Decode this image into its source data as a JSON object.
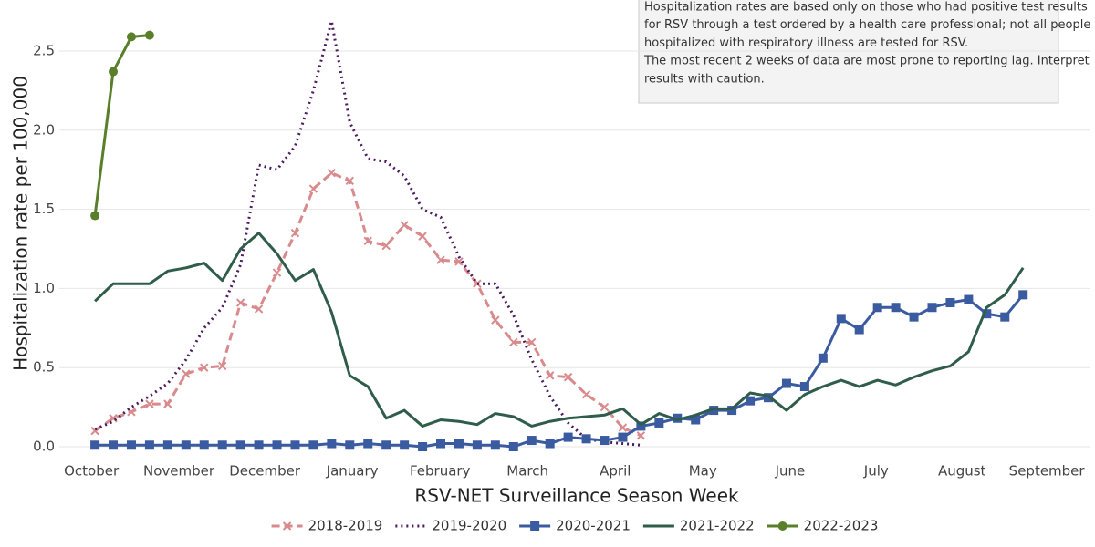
{
  "chart_data": {
    "type": "line",
    "x_label": "RSV-NET Surveillance Season Week",
    "y_label": "Hospitalization rate per 100,000",
    "annotation": [
      "Hospitalization rates are based only on those who had positive test results",
      "for RSV through a test ordered by a health care professional; not all people",
      "hospitalized with respiratory illness are tested for RSV.",
      "The most recent 2 weeks of data are most prone to reporting lag. Interpret",
      "results with caution."
    ],
    "x": [
      0,
      1,
      2,
      3,
      4,
      5,
      6,
      7,
      8,
      9,
      10,
      11,
      12,
      13,
      14,
      15,
      16,
      17,
      18,
      19,
      20,
      21,
      22,
      23,
      24,
      25,
      26,
      27,
      28,
      29,
      30,
      31,
      32,
      33,
      34,
      35,
      36,
      37,
      38,
      39,
      40,
      41,
      42,
      43,
      44,
      45,
      46,
      47,
      48,
      49,
      50,
      51
    ],
    "xlim": [
      -1.96,
      54.7
    ],
    "xticks": [
      {
        "value": -0.2,
        "label": "October"
      },
      {
        "value": 4.61,
        "label": "November"
      },
      {
        "value": 9.33,
        "label": "December"
      },
      {
        "value": 14.14,
        "label": "January"
      },
      {
        "value": 18.96,
        "label": "February"
      },
      {
        "value": 23.77,
        "label": "March"
      },
      {
        "value": 28.59,
        "label": "April"
      },
      {
        "value": 33.4,
        "label": "May"
      },
      {
        "value": 38.2,
        "label": "June"
      },
      {
        "value": 42.93,
        "label": "July"
      },
      {
        "value": 47.64,
        "label": "August"
      },
      {
        "value": 52.3,
        "label": "September"
      }
    ],
    "ylim": [
      0,
      2.75
    ],
    "yticks": [
      {
        "value": 0,
        "label": "0.0"
      },
      0.5,
      {
        "value": 1,
        "label": "1.0"
      },
      1.5,
      {
        "value": 2,
        "label": "2.0"
      },
      2.5
    ],
    "grid": true,
    "legend": "bottom",
    "series": [
      {
        "name": "2018-2019",
        "color": "#d98a8c",
        "dash": "dashed",
        "marker": "x",
        "values": [
          0.1,
          0.18,
          0.22,
          0.27,
          0.27,
          0.46,
          0.5,
          0.51,
          0.91,
          0.87,
          1.1,
          1.35,
          1.63,
          1.73,
          1.68,
          1.3,
          1.27,
          1.4,
          1.33,
          1.18,
          1.17,
          1.03,
          0.8,
          0.66,
          0.66,
          0.45,
          0.44,
          0.33,
          0.25,
          0.12,
          0.07,
          null,
          null,
          null,
          null,
          null,
          null,
          null,
          null,
          null,
          null,
          null,
          null,
          null,
          null,
          null,
          null,
          null,
          null,
          null,
          null,
          null
        ]
      },
      {
        "name": "2019-2020",
        "color": "#4b1c5e",
        "dash": "dotted",
        "marker": "none",
        "values": [
          0.11,
          0.16,
          0.25,
          0.32,
          0.4,
          0.55,
          0.75,
          0.88,
          1.15,
          1.78,
          1.75,
          1.9,
          2.25,
          2.69,
          2.05,
          1.82,
          1.8,
          1.71,
          1.5,
          1.45,
          1.2,
          1.03,
          1.03,
          0.83,
          0.55,
          0.32,
          0.15,
          0.05,
          0.03,
          0.02,
          0.01,
          null,
          null,
          null,
          null,
          null,
          null,
          null,
          null,
          null,
          null,
          null,
          null,
          null,
          null,
          null,
          null,
          null,
          null,
          null,
          null,
          null
        ]
      },
      {
        "name": "2020-2021",
        "color": "#3a5ba0",
        "dash": "solid",
        "marker": "square",
        "values": [
          0.01,
          0.01,
          0.01,
          0.01,
          0.01,
          0.01,
          0.01,
          0.01,
          0.01,
          0.01,
          0.01,
          0.01,
          0.01,
          0.02,
          0.01,
          0.02,
          0.01,
          0.01,
          0.0,
          0.02,
          0.02,
          0.01,
          0.01,
          0.0,
          0.04,
          0.02,
          0.06,
          0.05,
          0.04,
          0.06,
          0.13,
          0.15,
          0.18,
          0.17,
          0.23,
          0.23,
          0.29,
          0.31,
          0.4,
          0.38,
          0.56,
          0.81,
          0.74,
          0.88,
          0.88,
          0.82,
          0.88,
          0.91,
          0.93,
          0.84,
          0.82,
          0.96
        ]
      },
      {
        "name": "2021-2022",
        "color": "#2f5d4a",
        "dash": "solid",
        "marker": "none",
        "values": [
          0.92,
          1.03,
          1.03,
          1.03,
          1.11,
          1.13,
          1.16,
          1.05,
          1.25,
          1.35,
          1.22,
          1.05,
          1.12,
          0.85,
          0.45,
          0.38,
          0.18,
          0.23,
          0.13,
          0.17,
          0.16,
          0.14,
          0.21,
          0.19,
          0.13,
          0.16,
          0.18,
          0.19,
          0.2,
          0.24,
          0.14,
          0.21,
          0.17,
          0.2,
          0.24,
          0.24,
          0.34,
          0.32,
          0.23,
          0.33,
          0.38,
          0.42,
          0.38,
          0.42,
          0.39,
          0.44,
          0.48,
          0.51,
          0.6,
          0.88,
          0.96,
          1.13
        ]
      },
      {
        "name": "2022-2023",
        "color": "#5a7f2a",
        "dash": "solid",
        "marker": "circle",
        "values": [
          1.46,
          2.37,
          2.59,
          2.6,
          null,
          null,
          null,
          null,
          null,
          null,
          null,
          null,
          null,
          null,
          null,
          null,
          null,
          null,
          null,
          null,
          null,
          null,
          null,
          null,
          null,
          null,
          null,
          null,
          null,
          null,
          null,
          null,
          null,
          null,
          null,
          null,
          null,
          null,
          null,
          null,
          null,
          null,
          null,
          null,
          null,
          null,
          null,
          null,
          null,
          null,
          null,
          null
        ]
      }
    ]
  }
}
